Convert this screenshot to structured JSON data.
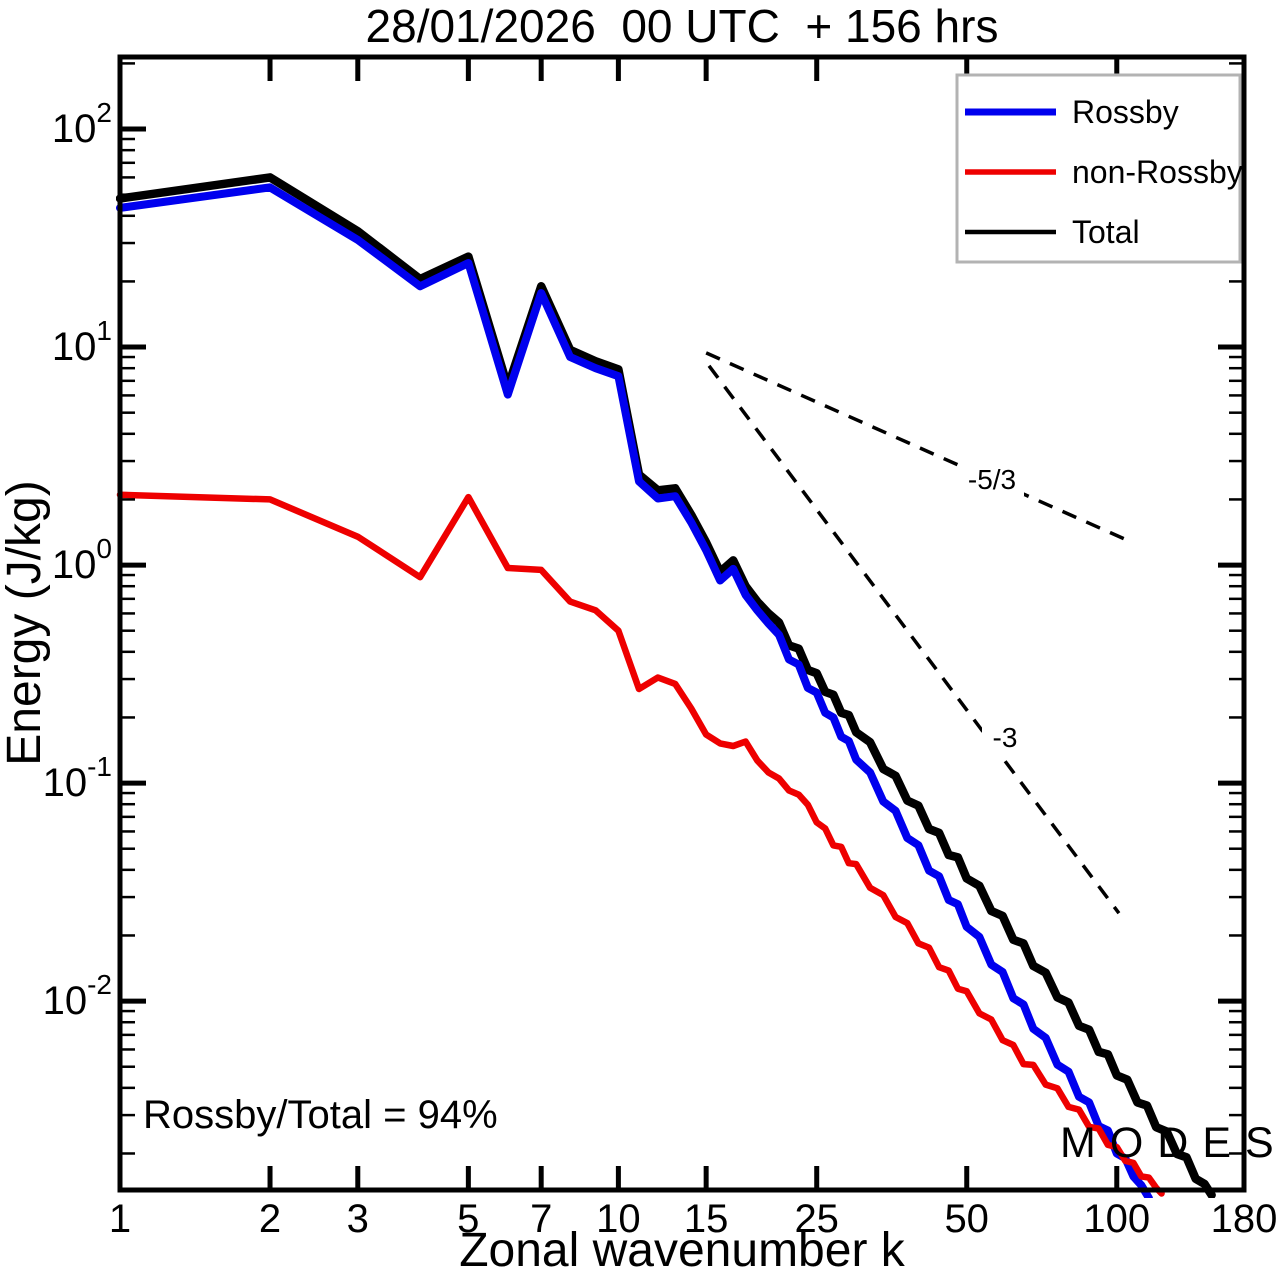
{
  "title": "28/01/2026  00 UTC  + 156 hrs",
  "annotation": {
    "text": "Rossby/Total = 94%"
  },
  "watermark": {
    "text": "MODES",
    "symbol": "©",
    "color": "#8f8f8f"
  },
  "chart_data": {
    "type": "line",
    "title": "28/01/2026 00 UTC + 156 hrs",
    "xlabel": "Zonal wavenumber k",
    "ylabel": "Energy (J/kg)",
    "x_scale": "log",
    "y_scale": "log",
    "xlim": [
      1,
      180
    ],
    "ylim": [
      0.00136,
      214
    ],
    "grid": false,
    "x_ticks": [
      1,
      2,
      3,
      5,
      7,
      10,
      15,
      25,
      50,
      100,
      180
    ],
    "y_ticks": [
      {
        "base": "10",
        "exp": "2",
        "value": 100
      },
      {
        "base": "10",
        "exp": "1",
        "value": 10
      },
      {
        "base": "10",
        "exp": "0",
        "value": 1
      },
      {
        "base": "10",
        "exp": "-1",
        "value": 0.1
      },
      {
        "base": "10",
        "exp": "-2",
        "value": 0.01
      }
    ],
    "legend": {
      "position": "top-right",
      "border_color": "#b3b3b3",
      "entries": [
        {
          "name": "Rossby",
          "color": "#0000ee",
          "sample_width": 7
        },
        {
          "name": "non-Rossby",
          "color": "#ee0000",
          "sample_width": 5.5
        },
        {
          "name": "Total",
          "color": "#000000",
          "sample_width": 4.5
        }
      ]
    },
    "reference_lines": [
      {
        "label": "-5/3",
        "from": [
          15.0,
          9.4
        ],
        "to": [
          105,
          1.3
        ],
        "style": "dashed"
      },
      {
        "label": "-3",
        "from": [
          15.2,
          8.2
        ],
        "to": [
          101,
          0.0253
        ],
        "style": "dashed"
      }
    ],
    "series": [
      {
        "name": "Total",
        "color": "#000000",
        "width": 8.5,
        "points": [
          [
            1,
            48
          ],
          [
            2,
            60
          ],
          [
            3,
            34
          ],
          [
            4,
            20.5
          ],
          [
            5,
            26
          ],
          [
            6,
            6.55
          ],
          [
            7,
            19
          ],
          [
            8,
            9.7
          ],
          [
            9,
            8.6
          ],
          [
            10,
            7.9
          ],
          [
            11,
            2.6
          ],
          [
            12,
            2.2
          ],
          [
            13,
            2.25
          ],
          [
            14,
            1.7
          ],
          [
            15,
            1.27
          ],
          [
            16,
            0.93
          ],
          [
            17,
            1.05
          ],
          [
            18,
            0.8
          ],
          [
            19,
            0.68
          ],
          [
            20,
            0.6
          ],
          [
            21,
            0.545
          ],
          [
            22,
            0.428
          ],
          [
            23,
            0.414
          ],
          [
            24,
            0.33
          ],
          [
            25,
            0.319
          ],
          [
            26,
            0.262
          ],
          [
            27,
            0.254
          ],
          [
            28,
            0.21
          ],
          [
            29,
            0.205
          ],
          [
            30,
            0.171
          ],
          [
            32,
            0.154
          ],
          [
            34,
            0.116
          ],
          [
            36,
            0.108
          ],
          [
            38,
            0.0831
          ],
          [
            40,
            0.0788
          ],
          [
            42,
            0.0616
          ],
          [
            44,
            0.0591
          ],
          [
            46,
            0.0468
          ],
          [
            48,
            0.0456
          ],
          [
            50,
            0.0365
          ],
          [
            53,
            0.0338
          ],
          [
            56,
            0.0259
          ],
          [
            59,
            0.0246
          ],
          [
            62,
            0.0191
          ],
          [
            65,
            0.0184
          ],
          [
            68,
            0.0145
          ],
          [
            72,
            0.0135
          ],
          [
            76,
            0.0104
          ],
          [
            80,
            0.00985
          ],
          [
            84,
            0.0077
          ],
          [
            88,
            0.00739
          ],
          [
            92,
            0.00585
          ],
          [
            96,
            0.0057
          ],
          [
            100,
            0.00456
          ],
          [
            105,
            0.00436
          ],
          [
            110,
            0.00343
          ],
          [
            115,
            0.00332
          ],
          [
            120,
            0.00264
          ],
          [
            126,
            0.00252
          ],
          [
            132,
            0.00199
          ],
          [
            138,
            0.00192
          ],
          [
            144,
            0.00153
          ],
          [
            150,
            0.00145
          ],
          [
            155,
            0.00129
          ]
        ]
      },
      {
        "name": "Rossby",
        "color": "#0000ee",
        "width": 8,
        "points": [
          [
            1,
            43.5
          ],
          [
            2,
            54
          ],
          [
            3,
            31
          ],
          [
            4,
            19
          ],
          [
            5,
            24.3
          ],
          [
            6,
            6.05
          ],
          [
            7,
            17.7
          ],
          [
            8,
            9.0
          ],
          [
            9,
            8.0
          ],
          [
            10,
            7.35
          ],
          [
            11,
            2.42
          ],
          [
            12,
            2.02
          ],
          [
            13,
            2.07
          ],
          [
            14,
            1.57
          ],
          [
            15,
            1.17
          ],
          [
            16,
            0.85
          ],
          [
            17,
            0.96
          ],
          [
            18,
            0.73
          ],
          [
            19,
            0.62
          ],
          [
            20,
            0.54
          ],
          [
            21,
            0.479
          ],
          [
            22,
            0.369
          ],
          [
            23,
            0.35
          ],
          [
            24,
            0.273
          ],
          [
            25,
            0.26
          ],
          [
            26,
            0.21
          ],
          [
            27,
            0.2
          ],
          [
            28,
            0.163
          ],
          [
            29,
            0.156
          ],
          [
            30,
            0.128
          ],
          [
            32,
            0.112
          ],
          [
            34,
            0.0822
          ],
          [
            36,
            0.0746
          ],
          [
            38,
            0.056
          ],
          [
            40,
            0.0519
          ],
          [
            42,
            0.0397
          ],
          [
            44,
            0.0374
          ],
          [
            46,
            0.0291
          ],
          [
            48,
            0.0278
          ],
          [
            50,
            0.0219
          ],
          [
            53,
            0.0197
          ],
          [
            56,
            0.0147
          ],
          [
            59,
            0.0136
          ],
          [
            62,
            0.0103
          ],
          [
            65,
            0.00966
          ],
          [
            68,
            0.00746
          ],
          [
            72,
            0.00679
          ],
          [
            76,
            0.00511
          ],
          [
            80,
            0.00475
          ],
          [
            84,
            0.00364
          ],
          [
            88,
            0.00343
          ],
          [
            92,
            0.00267
          ],
          [
            96,
            0.00255
          ],
          [
            100,
            0.002
          ],
          [
            104,
            0.0019
          ],
          [
            108,
            0.00157
          ],
          [
            112,
            0.00143
          ],
          [
            116,
            0.00125
          ]
        ]
      },
      {
        "name": "non-Rossby",
        "color": "#ee0000",
        "width": 6.5,
        "points": [
          [
            1,
            2.1
          ],
          [
            2,
            2.0
          ],
          [
            3,
            1.35
          ],
          [
            4,
            0.88
          ],
          [
            5,
            2.05
          ],
          [
            6,
            0.97
          ],
          [
            7,
            0.95
          ],
          [
            8,
            0.68
          ],
          [
            9,
            0.62
          ],
          [
            10,
            0.5
          ],
          [
            11,
            0.27
          ],
          [
            12,
            0.305
          ],
          [
            13,
            0.285
          ],
          [
            14,
            0.22
          ],
          [
            15,
            0.167
          ],
          [
            16,
            0.152
          ],
          [
            17,
            0.148
          ],
          [
            18,
            0.155
          ],
          [
            19,
            0.127
          ],
          [
            20,
            0.112
          ],
          [
            21,
            0.105
          ],
          [
            22,
            0.0925
          ],
          [
            23,
            0.0885
          ],
          [
            24,
            0.0795
          ],
          [
            25,
            0.066
          ],
          [
            26,
            0.0619
          ],
          [
            27,
            0.0518
          ],
          [
            28,
            0.051
          ],
          [
            29,
            0.0429
          ],
          [
            30,
            0.0425
          ],
          [
            32,
            0.0331
          ],
          [
            34,
            0.0306
          ],
          [
            36,
            0.0243
          ],
          [
            38,
            0.0228
          ],
          [
            40,
            0.0184
          ],
          [
            42,
            0.0176
          ],
          [
            44,
            0.0143
          ],
          [
            46,
            0.0138
          ],
          [
            48,
            0.0114
          ],
          [
            50,
            0.0111
          ],
          [
            53,
            0.00878
          ],
          [
            56,
            0.00823
          ],
          [
            59,
            0.00662
          ],
          [
            62,
            0.00629
          ],
          [
            65,
            0.00514
          ],
          [
            68,
            0.0051
          ],
          [
            72,
            0.00414
          ],
          [
            76,
            0.00398
          ],
          [
            80,
            0.00327
          ],
          [
            84,
            0.00318
          ],
          [
            88,
            0.00265
          ],
          [
            92,
            0.0026
          ],
          [
            96,
            0.00219
          ],
          [
            100,
            0.00214
          ],
          [
            104,
            0.00185
          ],
          [
            108,
            0.00181
          ],
          [
            112,
            0.00157
          ],
          [
            116,
            0.00155
          ],
          [
            120,
            0.00139
          ],
          [
            123,
            0.00131
          ]
        ]
      }
    ]
  }
}
